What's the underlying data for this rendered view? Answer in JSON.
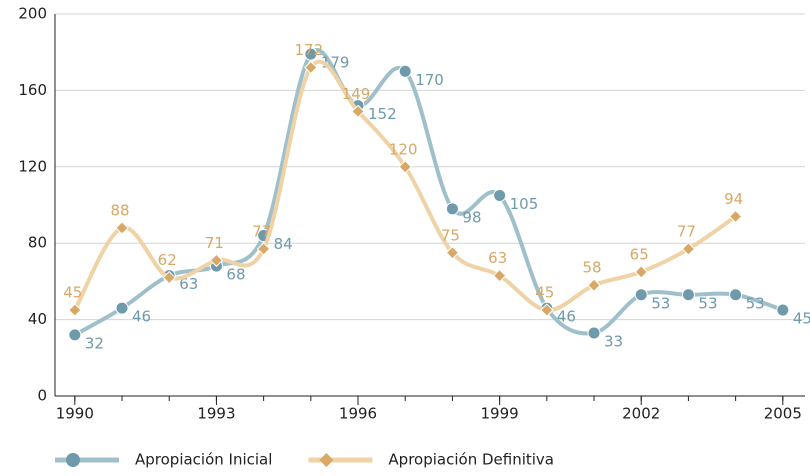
{
  "chart_data": {
    "type": "line",
    "x": [
      1990,
      1991,
      1992,
      1993,
      1994,
      1995,
      1996,
      1997,
      1998,
      1999,
      2000,
      2001,
      2002,
      2003,
      2004,
      2005
    ],
    "xlim": [
      1989.58,
      2005.47
    ],
    "xticks": [
      1990,
      1993,
      1996,
      1999,
      2002,
      2005
    ],
    "ylim": [
      0,
      200
    ],
    "yticks": [
      0,
      40,
      80,
      120,
      160,
      200
    ],
    "grid": true,
    "legend": "bottom",
    "series": [
      {
        "name": "Apropiación Inicial",
        "color": "#9fc0cb",
        "label_color": "#6e9aab",
        "values": [
          32,
          46,
          63,
          68,
          84,
          179,
          152,
          170,
          98,
          105,
          46,
          33,
          53,
          53,
          53,
          45
        ]
      },
      {
        "name": "Apropiación Definitiva",
        "color": "#efd2a6",
        "label_color": "#d9a866",
        "values": [
          45,
          88,
          62,
          71,
          77,
          172,
          149,
          120,
          75,
          63,
          45,
          58,
          65,
          77,
          94,
          null
        ]
      }
    ]
  }
}
